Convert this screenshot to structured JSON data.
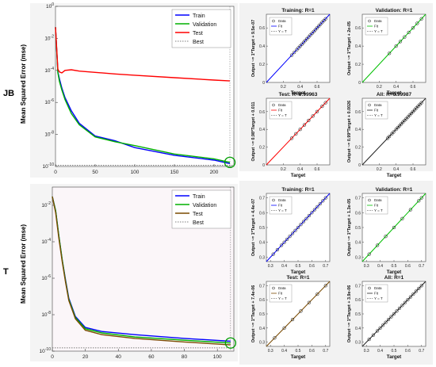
{
  "row_labels": [
    "JB",
    "T"
  ],
  "perf_axis_label": "Mean Squared Error  (mse)",
  "colors": {
    "train": "#0000ff",
    "validation": "#00b000",
    "test": "#ff0000",
    "best": "#555555",
    "fit_train": "#0000ff",
    "fit_val": "#00c000",
    "fit_test": "#ff0000",
    "fit_all": "#222222",
    "test_T": "#7a4a00"
  },
  "chart_data": [
    {
      "type": "line",
      "id": "perf-JB",
      "title": "",
      "xlabel": "",
      "ylabel": "Mean Squared Error  (mse)",
      "yscale": "log",
      "ylim": [
        1e-10,
        1
      ],
      "xlim": [
        0,
        225
      ],
      "xticks": [
        "0",
        "50",
        "100",
        "150",
        "200"
      ],
      "yticks": [
        "10^0",
        "10^-2",
        "10^-4",
        "10^-6",
        "10^-8",
        "10^-10"
      ],
      "legend": {
        "placement": "top-right",
        "entries": [
          "Train",
          "Validation",
          "Test",
          "Best"
        ]
      },
      "series": [
        {
          "name": "Train",
          "x": [
            0,
            3,
            5,
            8,
            12,
            20,
            30,
            50,
            75,
            100,
            150,
            200,
            220
          ],
          "y": [
            0.05,
            8e-05,
            3e-05,
            8e-06,
            2e-06,
            3e-07,
            5e-08,
            8e-09,
            4e-09,
            1.5e-09,
            5e-10,
            2.5e-10,
            1.5e-10
          ]
        },
        {
          "name": "Validation",
          "x": [
            0,
            3,
            5,
            8,
            12,
            20,
            30,
            50,
            75,
            100,
            150,
            200,
            220
          ],
          "y": [
            0.05,
            7e-05,
            2e-05,
            6e-06,
            1.5e-06,
            2e-07,
            4e-08,
            7e-09,
            3.5e-09,
            2e-09,
            6e-10,
            3e-10,
            1.8e-10
          ]
        },
        {
          "name": "Test",
          "x": [
            0,
            3,
            5,
            8,
            12,
            20,
            30,
            50,
            75,
            100,
            150,
            200,
            220
          ],
          "y": [
            0.05,
            0.00012,
            8e-05,
            7e-05,
            0.0001,
            0.00011,
            9e-05,
            7.5e-05,
            6e-05,
            5e-05,
            3.5e-05,
            2.5e-05,
            2.2e-05
          ]
        },
        {
          "name": "Best",
          "x": [
            0,
            225
          ],
          "y": [
            1.2e-10,
            1.2e-10
          ]
        }
      ]
    },
    {
      "type": "line",
      "id": "perf-T",
      "title": "",
      "xlabel": "",
      "ylabel": "Mean Squared Error  (mse)",
      "yscale": "log",
      "ylim": [
        1e-10,
        0.1
      ],
      "xlim": [
        0,
        110
      ],
      "xticks": [
        "0",
        "20",
        "40",
        "60",
        "80",
        "100"
      ],
      "yticks": [
        "10^-2",
        "10^-4",
        "10^-6",
        "10^-8",
        "10^-10"
      ],
      "legend": {
        "placement": "top-right",
        "entries": [
          "Train",
          "Validation",
          "Test",
          "Best"
        ]
      },
      "series": [
        {
          "name": "Train",
          "x": [
            0,
            2,
            4,
            6,
            8,
            10,
            14,
            20,
            30,
            50,
            80,
            108
          ],
          "y": [
            0.03,
            0.005,
            0.0002,
            1e-05,
            8e-07,
            8e-08,
            8e-09,
            2e-09,
            1.2e-09,
            8e-10,
            5e-10,
            3.5e-10
          ]
        },
        {
          "name": "Validation",
          "x": [
            0,
            2,
            4,
            6,
            8,
            10,
            14,
            20,
            30,
            50,
            80,
            108
          ],
          "y": [
            0.03,
            0.005,
            0.0002,
            1e-05,
            7e-07,
            7e-08,
            7e-09,
            1.7e-09,
            1e-09,
            6e-10,
            4e-10,
            2.8e-10
          ]
        },
        {
          "name": "Test",
          "x": [
            0,
            2,
            4,
            6,
            8,
            10,
            14,
            20,
            30,
            50,
            80,
            108
          ],
          "y": [
            0.03,
            0.004,
            0.00015,
            8e-06,
            6e-07,
            6e-08,
            6e-09,
            1.4e-09,
            8e-10,
            5e-10,
            3.2e-10,
            2.2e-10
          ]
        },
        {
          "name": "Best",
          "x": [
            0,
            110
          ],
          "y": [
            1.5e-10,
            1.5e-10
          ]
        }
      ]
    },
    {
      "type": "scatter",
      "id": "reg-JB-train",
      "title": "Training: R=1",
      "xlabel": "Target",
      "ylabel": "Output ~= 1*Target + 9.5e-07",
      "xticks": [
        "0.2",
        "0.4",
        "0.6"
      ],
      "yticks": [
        "0",
        "0.2",
        "0.4",
        "0.6"
      ],
      "xlim": [
        0,
        0.75
      ],
      "ylim": [
        0,
        0.75
      ],
      "legend": [
        "Data",
        "Fit",
        "Y = T"
      ],
      "points": [
        0.3,
        0.33,
        0.36,
        0.38,
        0.4,
        0.42,
        0.44,
        0.46,
        0.48,
        0.5,
        0.52,
        0.54,
        0.56,
        0.58,
        0.6,
        0.62,
        0.64,
        0.66,
        0.68,
        0.7
      ]
    },
    {
      "type": "scatter",
      "id": "reg-JB-val",
      "title": "Validation: R=1",
      "xlabel": "Target",
      "ylabel": "Output ~= 1*Target + 2e-05",
      "xticks": [
        "0.2",
        "0.4",
        "0.6"
      ],
      "yticks": [
        "0",
        "0.2",
        "0.4",
        "0.6"
      ],
      "xlim": [
        0,
        0.75
      ],
      "ylim": [
        0,
        0.75
      ],
      "legend": [
        "Data",
        "Fit",
        "Y = T"
      ],
      "points": [
        0.32,
        0.4,
        0.45,
        0.5,
        0.55,
        0.6,
        0.65,
        0.7
      ]
    },
    {
      "type": "scatter",
      "id": "reg-JB-test",
      "title": "Test: R=0.99963",
      "xlabel": "Target",
      "ylabel": "Output ~= 0.98*Target + 0.011",
      "xticks": [
        "0.2",
        "0.4",
        "0.6"
      ],
      "yticks": [
        "0",
        "0.2",
        "0.4",
        "0.6"
      ],
      "xlim": [
        0,
        0.75
      ],
      "ylim": [
        0,
        0.75
      ],
      "legend": [
        "Data",
        "Fit",
        "Y = T"
      ],
      "points": [
        0.3,
        0.35,
        0.4,
        0.45,
        0.5,
        0.55,
        0.6,
        0.66,
        0.7
      ]
    },
    {
      "type": "scatter",
      "id": "reg-JB-all",
      "title": "All: R=0.99987",
      "xlabel": "Target",
      "ylabel": "Output ~= 0.99*Target + 0.0026",
      "xticks": [
        "0.2",
        "0.4",
        "0.6"
      ],
      "yticks": [
        "0",
        "0.2",
        "0.4",
        "0.6"
      ],
      "xlim": [
        0,
        0.75
      ],
      "ylim": [
        0,
        0.75
      ],
      "legend": [
        "Data",
        "Fit",
        "Y = T"
      ],
      "points": [
        0.3,
        0.32,
        0.35,
        0.37,
        0.4,
        0.42,
        0.44,
        0.46,
        0.48,
        0.5,
        0.52,
        0.54,
        0.56,
        0.58,
        0.6,
        0.62,
        0.64,
        0.66,
        0.68,
        0.7
      ]
    },
    {
      "type": "scatter",
      "id": "reg-T-train",
      "title": "Training: R=1",
      "xlabel": "Target",
      "ylabel": "Output ~= 1*Target + 4.4e-07",
      "xticks": [
        "0.3",
        "0.4",
        "0.5",
        "0.6",
        "0.7"
      ],
      "yticks": [
        "0.3",
        "0.4",
        "0.5",
        "0.6",
        "0.7"
      ],
      "xlim": [
        0.27,
        0.73
      ],
      "ylim": [
        0.27,
        0.73
      ],
      "legend": [
        "Data",
        "Fit",
        "Y = T"
      ],
      "points": [
        0.32,
        0.35,
        0.38,
        0.4,
        0.42,
        0.44,
        0.46,
        0.48,
        0.5,
        0.52,
        0.54,
        0.56,
        0.58,
        0.6,
        0.62,
        0.64,
        0.66,
        0.68,
        0.7
      ]
    },
    {
      "type": "scatter",
      "id": "reg-T-val",
      "title": "Validation: R=1",
      "xlabel": "Target",
      "ylabel": "Output ~= 1*Target + 1.3e-05",
      "xticks": [
        "0.3",
        "0.4",
        "0.5",
        "0.6",
        "0.7"
      ],
      "yticks": [
        "0.3",
        "0.4",
        "0.5",
        "0.6",
        "0.7"
      ],
      "xlim": [
        0.27,
        0.73
      ],
      "ylim": [
        0.27,
        0.73
      ],
      "legend": [
        "Data",
        "Fit",
        "Y = T"
      ],
      "points": [
        0.32,
        0.38,
        0.44,
        0.5,
        0.56,
        0.62,
        0.68,
        0.7
      ]
    },
    {
      "type": "scatter",
      "id": "reg-T-test",
      "title": "Test: R=1",
      "xlabel": "Target",
      "ylabel": "Output ~= 1*Target + 7.4e-06",
      "xticks": [
        "0.3",
        "0.4",
        "0.5",
        "0.6",
        "0.7"
      ],
      "yticks": [
        "0.3",
        "0.4",
        "0.5",
        "0.6",
        "0.7"
      ],
      "xlim": [
        0.27,
        0.73
      ],
      "ylim": [
        0.27,
        0.73
      ],
      "legend": [
        "Data",
        "Fit",
        "Y = T"
      ],
      "points": [
        0.33,
        0.4,
        0.46,
        0.52,
        0.58,
        0.64,
        0.7
      ]
    },
    {
      "type": "scatter",
      "id": "reg-T-all",
      "title": "All: R=1",
      "xlabel": "Target",
      "ylabel": "Output ~= 1*Target + 3.9e-06",
      "xticks": [
        "0.3",
        "0.4",
        "0.5",
        "0.6",
        "0.7"
      ],
      "yticks": [
        "0.3",
        "0.4",
        "0.5",
        "0.6",
        "0.7"
      ],
      "xlim": [
        0.27,
        0.73
      ],
      "ylim": [
        0.27,
        0.73
      ],
      "legend": [
        "Data",
        "Fit",
        "Y = T"
      ],
      "points": [
        0.32,
        0.35,
        0.38,
        0.4,
        0.42,
        0.44,
        0.46,
        0.48,
        0.5,
        0.52,
        0.54,
        0.56,
        0.58,
        0.6,
        0.62,
        0.64,
        0.66,
        0.68,
        0.7
      ]
    }
  ]
}
